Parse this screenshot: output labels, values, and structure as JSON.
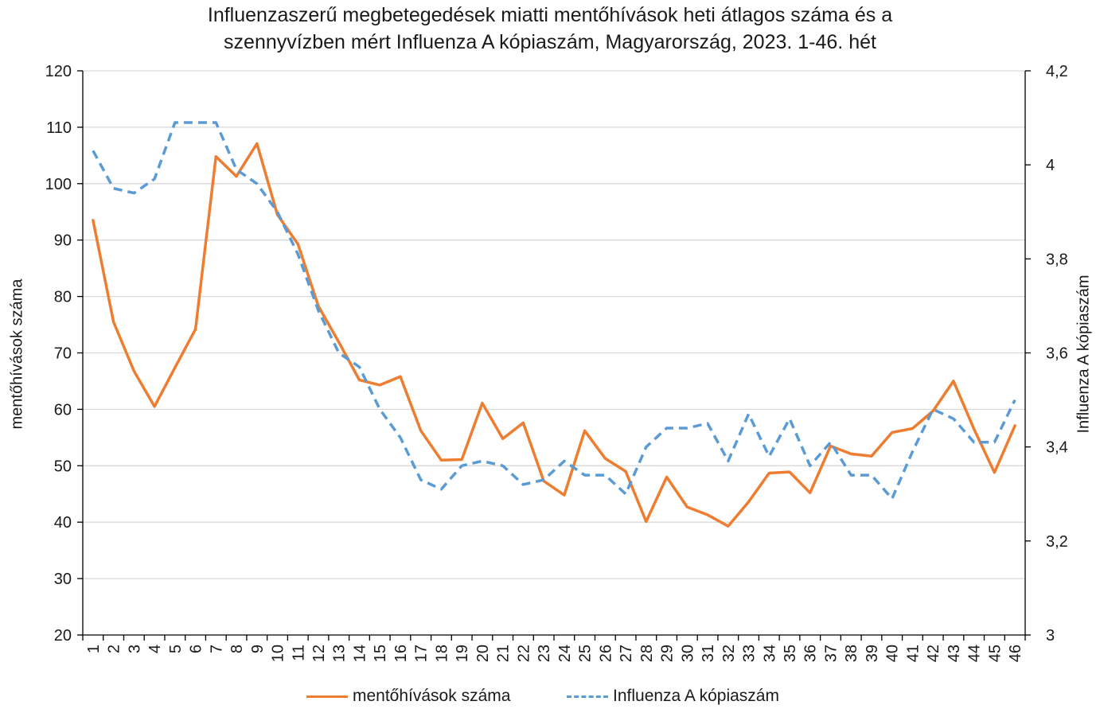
{
  "colors": {
    "series1": "#ED7D31",
    "series2": "#5B9BD5",
    "grid": "#d9d9d9",
    "axis": "#000000"
  },
  "chart_data": {
    "type": "line",
    "title_line1": "Influenzaszerű megbetegedések miatti mentőhívások heti átlagos száma és a",
    "title_line2": "szennyvízben mért Influenza A kópiaszám, Magyarország, 2023. 1-46. hét",
    "ylabel": "mentőhívások száma",
    "y2label": "Influenza A kópiaszám",
    "xlabel": "",
    "ylim": [
      20,
      120
    ],
    "y_ticks": [
      20,
      30,
      40,
      50,
      60,
      70,
      80,
      90,
      100,
      110,
      120
    ],
    "y2lim": [
      3.0,
      4.2
    ],
    "y2_ticks": [
      3.0,
      3.2,
      3.4,
      3.6,
      3.8,
      4.0,
      4.2
    ],
    "y2_tick_labels": [
      "3",
      "3,2",
      "3,4",
      "3,6",
      "3,8",
      "4",
      "4,2"
    ],
    "grid": true,
    "legend_position": "bottom",
    "categories": [
      "1",
      "2",
      "3",
      "4",
      "5",
      "6",
      "7",
      "8",
      "9",
      "10",
      "11",
      "12",
      "13",
      "14",
      "15",
      "16",
      "17",
      "18",
      "19",
      "20",
      "21",
      "22",
      "23",
      "24",
      "25",
      "26",
      "27",
      "28",
      "29",
      "30",
      "31",
      "32",
      "33",
      "34",
      "35",
      "36",
      "37",
      "38",
      "39",
      "40",
      "41",
      "42",
      "43",
      "44",
      "45",
      "46"
    ],
    "series": [
      {
        "name": "mentőhívások száma",
        "axis": "left",
        "style": "solid",
        "values": [
          93.5,
          75.5,
          66.8,
          60.5,
          67.4,
          74.2,
          104.8,
          101.3,
          107.1,
          94.5,
          89.3,
          78.3,
          71.9,
          65.2,
          64.3,
          65.8,
          56.2,
          51.0,
          51.1,
          61.1,
          54.8,
          57.6,
          47.3,
          44.8,
          56.2,
          51.3,
          49.0,
          40.1,
          48.0,
          42.7,
          41.3,
          39.3,
          43.6,
          48.7,
          48.9,
          45.2,
          53.5,
          52.1,
          51.7,
          55.9,
          56.6,
          59.7,
          65.0,
          56.5,
          48.8,
          57.1
        ]
      },
      {
        "name": "Influenza A kópiaszám",
        "axis": "right",
        "style": "dashed",
        "values": [
          4.03,
          3.95,
          3.94,
          3.97,
          4.09,
          4.09,
          4.09,
          3.99,
          3.96,
          3.9,
          3.81,
          3.69,
          3.6,
          3.57,
          3.48,
          3.42,
          3.33,
          3.31,
          3.36,
          3.37,
          3.36,
          3.32,
          3.33,
          3.37,
          3.34,
          3.34,
          3.3,
          3.4,
          3.44,
          3.44,
          3.45,
          3.37,
          3.47,
          3.38,
          3.46,
          3.36,
          3.41,
          3.34,
          3.34,
          3.29,
          3.39,
          3.48,
          3.46,
          3.41,
          3.41,
          3.5
        ]
      }
    ]
  }
}
